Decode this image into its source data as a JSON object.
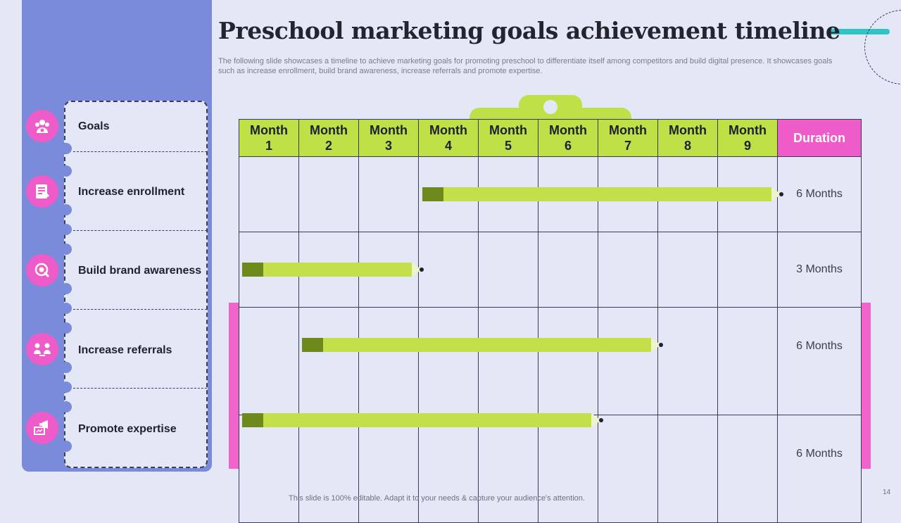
{
  "title": "Preschool marketing goals achievement timeline",
  "subtitle": "The following slide showcases a timeline to achieve marketing goals for promoting preschool to differentiate itself among competitors and build digital presence. It showcases goals such as increase enrollment, build brand awareness, increase referrals and promote expertise.",
  "goals_header": "Goals",
  "goals": [
    {
      "label": "Increase enrollment",
      "icon": "enrollment-form-icon",
      "start_month": 4,
      "end_month": 9,
      "duration": "6 Months"
    },
    {
      "label": "Build brand awareness",
      "icon": "brand-awareness-icon",
      "start_month": 1,
      "end_month": 3,
      "duration": "3 Months"
    },
    {
      "label": "Increase referrals",
      "icon": "referrals-icon",
      "start_month": 2,
      "end_month": 7,
      "duration": "6 Months"
    },
    {
      "label": "Promote expertise",
      "icon": "megaphone-presentation-icon",
      "start_month": 1,
      "end_month": 6,
      "duration": "6 Months"
    }
  ],
  "goals_header_icon": "group-target-icon",
  "months": [
    {
      "top": "Month",
      "num": "1"
    },
    {
      "top": "Month",
      "num": "2"
    },
    {
      "top": "Month",
      "num": "3"
    },
    {
      "top": "Month",
      "num": "4"
    },
    {
      "top": "Month",
      "num": "5"
    },
    {
      "top": "Month",
      "num": "6"
    },
    {
      "top": "Month",
      "num": "7"
    },
    {
      "top": "Month",
      "num": "8"
    },
    {
      "top": "Month",
      "num": "9"
    }
  ],
  "duration_header": "Duration",
  "footer": "This slide is 100% editable. Adapt it to your needs & capture your audience's attention.",
  "page_number": "14",
  "colors": {
    "lime": "#bfe047",
    "pink": "#ee5cc9",
    "periwinkle": "#7a8bdb",
    "teal": "#2fc4c5"
  }
}
